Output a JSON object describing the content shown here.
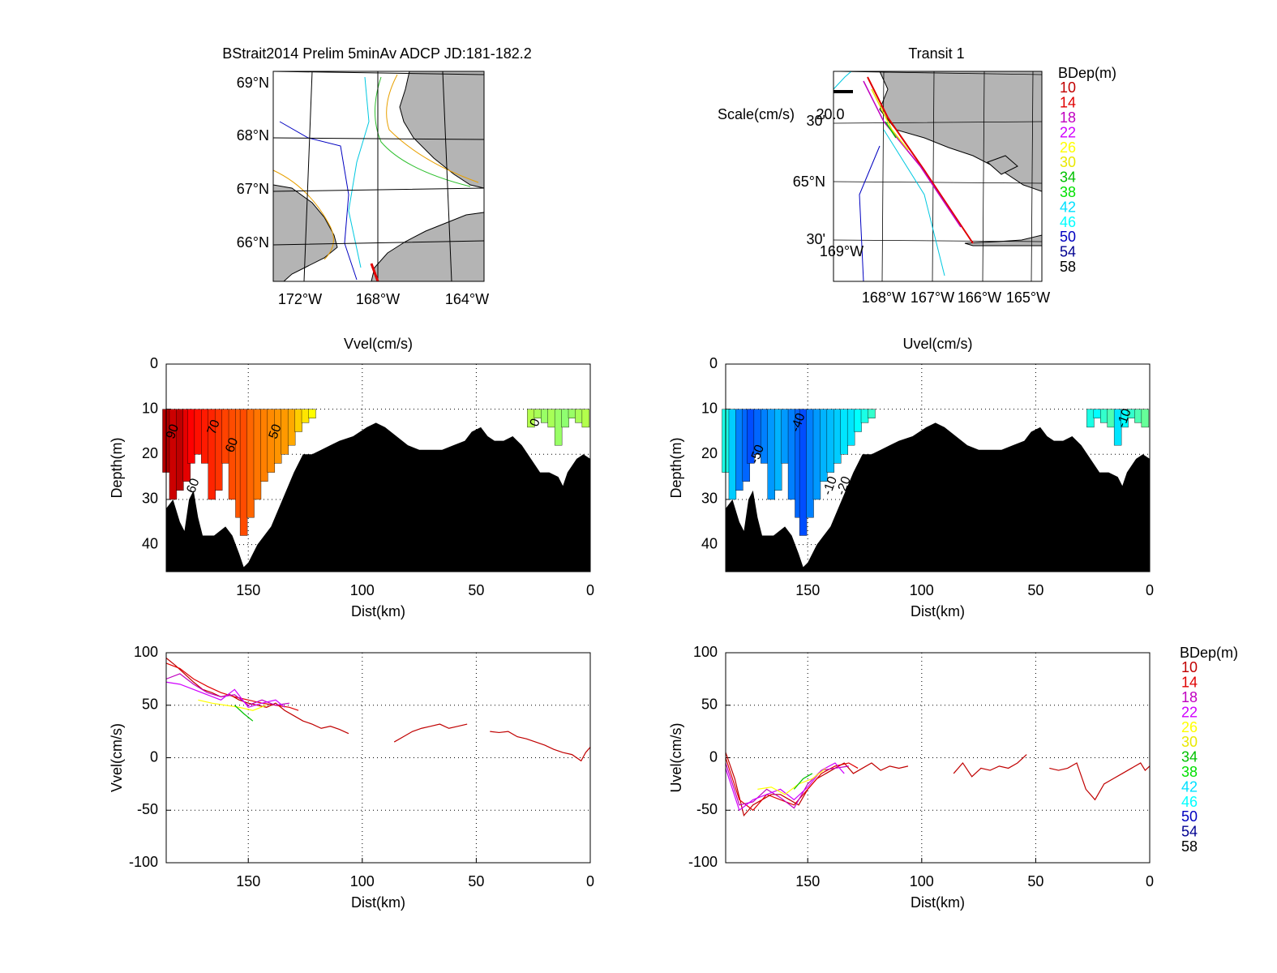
{
  "chart_data": [
    {
      "type": "map",
      "title": "BStrait2014 Prelim 5minAv ADCP JD:181-182.2",
      "lat_labels": [
        "69°N",
        "68°N",
        "67°N",
        "66°N"
      ],
      "lon_labels": [
        "172°W",
        "168°W",
        "164°W"
      ]
    },
    {
      "type": "map",
      "title": "Transit 1",
      "scale_label": "Scale(cm/s)",
      "scale_text": "20.0",
      "lat_labels": [
        "30'",
        "65°N",
        "30'"
      ],
      "lon_labels": [
        "169°W",
        "168°W",
        "167°W",
        "166°W",
        "165°W"
      ],
      "legend": {
        "title": "BDep(m)",
        "entries": [
          {
            "name": "10",
            "color": "#c00000"
          },
          {
            "name": "14",
            "color": "#e00000"
          },
          {
            "name": "18",
            "color": "#c000c0"
          },
          {
            "name": "22",
            "color": "#d000ff"
          },
          {
            "name": "26",
            "color": "#ffff00"
          },
          {
            "name": "30",
            "color": "#e8e800"
          },
          {
            "name": "34",
            "color": "#00c000"
          },
          {
            "name": "38",
            "color": "#00e000"
          },
          {
            "name": "42",
            "color": "#00e0ff"
          },
          {
            "name": "46",
            "color": "#00ffff"
          },
          {
            "name": "50",
            "color": "#0000c0"
          },
          {
            "name": "54",
            "color": "#000090"
          },
          {
            "name": "58",
            "color": "#000000"
          }
        ]
      }
    },
    {
      "type": "contour",
      "title": "Vvel(cm/s)",
      "xlabel": "Dist(km)",
      "ylabel": "Depth(m)",
      "xlim": [
        186,
        0
      ],
      "ylim": [
        46,
        0
      ],
      "xticks": [
        150,
        100,
        50,
        0
      ],
      "yticks": [
        0,
        10,
        20,
        30,
        40
      ],
      "grid": true,
      "clim": [
        -100,
        100
      ],
      "data_top": 10,
      "columns": {
        "x": [
          186,
          183,
          180,
          177,
          175,
          172,
          169,
          166,
          163,
          160,
          157,
          154,
          152,
          149,
          146,
          143,
          140,
          137,
          134,
          131,
          128,
          125,
          122,
          26,
          23,
          20,
          17,
          14,
          11,
          8,
          5,
          2
        ],
        "data_bottom": [
          24,
          30,
          28,
          26,
          22,
          20,
          22,
          30,
          28,
          22,
          30,
          34,
          38,
          34,
          30,
          26,
          24,
          22,
          20,
          18,
          15,
          13,
          12,
          14,
          12,
          13,
          14,
          18,
          14,
          12,
          13,
          14
        ],
        "values": [
          90,
          85,
          88,
          80,
          75,
          72,
          70,
          68,
          65,
          62,
          60,
          58,
          60,
          55,
          52,
          50,
          48,
          46,
          45,
          42,
          35,
          30,
          25,
          10,
          8,
          5,
          8,
          5,
          3,
          5,
          8,
          10
        ]
      },
      "contour_labels": [
        {
          "value": 90,
          "x": 183,
          "depth": 15
        },
        {
          "value": 70,
          "x": 165,
          "depth": 14
        },
        {
          "value": 60,
          "x": 157,
          "depth": 18
        },
        {
          "value": 50,
          "x": 138,
          "depth": 15
        },
        {
          "value": 60,
          "x": 174,
          "depth": 27
        },
        {
          "value": 0,
          "x": 24,
          "depth": 13
        }
      ],
      "bottom": {
        "x": [
          186,
          183,
          180,
          178,
          176,
          174,
          172,
          170,
          165,
          160,
          157,
          154,
          152,
          150,
          146,
          140,
          135,
          130,
          126,
          122,
          118,
          114,
          110,
          104,
          98,
          94,
          90,
          85,
          80,
          75,
          70,
          65,
          60,
          55,
          52,
          48,
          45,
          42,
          38,
          34,
          30,
          26,
          22,
          18,
          14,
          12,
          10,
          6,
          3,
          0
        ],
        "depth": [
          32,
          30,
          35,
          37,
          30,
          28,
          34,
          38,
          38,
          36,
          38,
          42,
          45,
          44,
          40,
          36,
          30,
          24,
          20,
          20,
          19,
          18,
          17,
          16,
          14,
          13,
          14,
          16,
          18,
          19,
          19,
          19,
          18,
          17,
          15,
          14,
          16,
          17,
          17,
          16,
          18,
          21,
          24,
          24,
          25,
          27,
          24,
          21,
          20,
          21
        ]
      }
    },
    {
      "type": "contour",
      "title": "Uvel(cm/s)",
      "xlabel": "Dist(km)",
      "ylabel": "Depth(m)",
      "xlim": [
        186,
        0
      ],
      "ylim": [
        46,
        0
      ],
      "xticks": [
        150,
        100,
        50,
        0
      ],
      "yticks": [
        0,
        10,
        20,
        30,
        40
      ],
      "grid": true,
      "clim": [
        -100,
        100
      ],
      "data_top": 10,
      "columns": {
        "x": [
          186,
          183,
          180,
          177,
          175,
          172,
          169,
          166,
          163,
          160,
          157,
          154,
          152,
          149,
          146,
          143,
          140,
          137,
          134,
          131,
          128,
          125,
          122,
          26,
          23,
          20,
          17,
          14,
          11,
          8,
          5,
          2
        ],
        "data_bottom": [
          24,
          30,
          28,
          26,
          22,
          20,
          22,
          30,
          28,
          22,
          30,
          34,
          38,
          34,
          30,
          26,
          24,
          22,
          20,
          18,
          15,
          13,
          12,
          14,
          12,
          13,
          14,
          18,
          14,
          12,
          13,
          14
        ],
        "values": [
          -20,
          -35,
          -50,
          -55,
          -60,
          -55,
          -50,
          -45,
          -40,
          -45,
          -50,
          -55,
          -60,
          -50,
          -45,
          -40,
          -38,
          -35,
          -30,
          -30,
          -25,
          -20,
          -15,
          -20,
          -25,
          -15,
          -10,
          -30,
          -25,
          -15,
          -10,
          -5
        ]
      },
      "contour_labels": [
        {
          "value": -40,
          "x": 154,
          "depth": 13
        },
        {
          "value": -50,
          "x": 172,
          "depth": 20
        },
        {
          "value": -10,
          "x": 140,
          "depth": 27
        },
        {
          "value": -20,
          "x": 134,
          "depth": 27
        },
        {
          "value": -10,
          "x": 11,
          "depth": 12
        }
      ],
      "bottom": {
        "x": [
          186,
          183,
          180,
          178,
          176,
          174,
          172,
          170,
          165,
          160,
          157,
          154,
          152,
          150,
          146,
          140,
          135,
          130,
          126,
          122,
          118,
          114,
          110,
          104,
          98,
          94,
          90,
          85,
          80,
          75,
          70,
          65,
          60,
          55,
          52,
          48,
          45,
          42,
          38,
          34,
          30,
          26,
          22,
          18,
          14,
          12,
          10,
          6,
          3,
          0
        ],
        "depth": [
          32,
          30,
          35,
          37,
          30,
          28,
          34,
          38,
          38,
          36,
          38,
          42,
          45,
          44,
          40,
          36,
          30,
          24,
          20,
          20,
          19,
          18,
          17,
          16,
          14,
          13,
          14,
          16,
          18,
          19,
          19,
          19,
          18,
          17,
          15,
          14,
          16,
          17,
          17,
          16,
          18,
          21,
          24,
          24,
          25,
          27,
          24,
          21,
          20,
          21
        ]
      }
    },
    {
      "type": "line",
      "xlabel": "Dist(km)",
      "ylabel": "Vvel(cm/s)",
      "xlim": [
        186,
        0
      ],
      "ylim": [
        -100,
        100
      ],
      "xticks": [
        150,
        100,
        50,
        0
      ],
      "yticks": [
        -100,
        -50,
        0,
        50,
        100
      ],
      "grid": true,
      "series": [
        {
          "color": "#c00000",
          "x": [
            186,
            182,
            178,
            174,
            170,
            166,
            162,
            158,
            154,
            150,
            146,
            142,
            138,
            134,
            130,
            126,
            122,
            118,
            114,
            110,
            106,
            96,
            86,
            82,
            78,
            74,
            70,
            66,
            62,
            58,
            54,
            49,
            44,
            40,
            36,
            32,
            28,
            24,
            20,
            16,
            12,
            8,
            4,
            2,
            0
          ],
          "values": [
            95,
            88,
            80,
            72,
            65,
            62,
            58,
            60,
            55,
            52,
            50,
            48,
            52,
            45,
            40,
            35,
            32,
            28,
            30,
            27,
            23,
            null,
            15,
            20,
            25,
            28,
            30,
            32,
            28,
            30,
            32,
            null,
            25,
            24,
            25,
            20,
            18,
            15,
            12,
            8,
            5,
            3,
            -3,
            5,
            10
          ]
        },
        {
          "color": "#e00000",
          "x": [
            186,
            180,
            174,
            168,
            162,
            156,
            150,
            144,
            138,
            132,
            128
          ],
          "values": [
            90,
            85,
            75,
            68,
            62,
            58,
            55,
            52,
            50,
            48,
            45
          ]
        },
        {
          "color": "#c000c0",
          "x": [
            186,
            180,
            174,
            168,
            162,
            156,
            150,
            144,
            138,
            132
          ],
          "values": [
            75,
            80,
            70,
            62,
            58,
            60,
            50,
            55,
            50,
            52
          ]
        },
        {
          "color": "#d000ff",
          "x": [
            186,
            180,
            174,
            168,
            162,
            156,
            150,
            144,
            138,
            134
          ],
          "values": [
            72,
            70,
            65,
            60,
            55,
            65,
            48,
            52,
            55,
            48
          ]
        },
        {
          "color": "#ffff00",
          "x": [
            172,
            166,
            160,
            154,
            148,
            142
          ],
          "values": [
            55,
            52,
            50,
            48,
            45,
            50
          ]
        },
        {
          "color": "#00c000",
          "x": [
            156,
            152,
            148
          ],
          "values": [
            50,
            42,
            35
          ]
        }
      ]
    },
    {
      "type": "line",
      "xlabel": "Dist(km)",
      "ylabel": "Uvel(cm/s)",
      "xlim": [
        186,
        0
      ],
      "ylim": [
        -100,
        100
      ],
      "xticks": [
        150,
        100,
        50,
        0
      ],
      "yticks": [
        -100,
        -50,
        0,
        50,
        100
      ],
      "grid": true,
      "series": [
        {
          "color": "#c00000",
          "x": [
            186,
            182,
            178,
            174,
            170,
            166,
            162,
            158,
            154,
            150,
            146,
            142,
            138,
            134,
            130,
            126,
            122,
            118,
            114,
            110,
            106,
            96,
            86,
            82,
            78,
            74,
            70,
            66,
            62,
            58,
            54,
            49,
            44,
            40,
            36,
            32,
            28,
            24,
            20,
            16,
            12,
            8,
            4,
            2,
            0
          ],
          "values": [
            5,
            -20,
            -55,
            -45,
            -40,
            -35,
            -35,
            -40,
            -45,
            -30,
            -20,
            -15,
            -10,
            -5,
            -15,
            -10,
            -5,
            -12,
            -8,
            -10,
            -8,
            null,
            -15,
            -5,
            -18,
            -10,
            -12,
            -8,
            -10,
            -5,
            3,
            null,
            -10,
            -12,
            -10,
            -5,
            -30,
            -40,
            -25,
            -20,
            -15,
            -10,
            -5,
            -12,
            -8
          ]
        },
        {
          "color": "#e00000",
          "x": [
            186,
            180,
            174,
            168,
            162,
            156,
            150,
            144,
            138,
            132,
            128
          ],
          "values": [
            0,
            -40,
            -50,
            -35,
            -40,
            -45,
            -30,
            -15,
            -8,
            -5,
            -10
          ]
        },
        {
          "color": "#c000c0",
          "x": [
            186,
            180,
            174,
            168,
            162,
            156,
            150,
            144,
            138,
            132
          ],
          "values": [
            -5,
            -45,
            -42,
            -30,
            -38,
            -48,
            -25,
            -12,
            -10,
            -8
          ]
        },
        {
          "color": "#d000ff",
          "x": [
            186,
            180,
            174,
            168,
            162,
            156,
            150,
            144,
            138,
            134
          ],
          "values": [
            -10,
            -50,
            -40,
            -35,
            -30,
            -40,
            -28,
            -12,
            -5,
            -15
          ]
        },
        {
          "color": "#ffff00",
          "x": [
            172,
            166,
            160,
            154,
            148,
            142
          ],
          "values": [
            -30,
            -28,
            -35,
            -25,
            -20,
            -10
          ]
        },
        {
          "color": "#00c000",
          "x": [
            156,
            152,
            148
          ],
          "values": [
            -30,
            -20,
            -15
          ]
        }
      ],
      "legend": {
        "title": "BDep(m)",
        "entries": [
          {
            "name": "10",
            "color": "#c00000"
          },
          {
            "name": "14",
            "color": "#e00000"
          },
          {
            "name": "18",
            "color": "#c000c0"
          },
          {
            "name": "22",
            "color": "#d000ff"
          },
          {
            "name": "26",
            "color": "#ffff00"
          },
          {
            "name": "30",
            "color": "#e8e800"
          },
          {
            "name": "34",
            "color": "#00c000"
          },
          {
            "name": "38",
            "color": "#00e000"
          },
          {
            "name": "42",
            "color": "#00e0ff"
          },
          {
            "name": "46",
            "color": "#00ffff"
          },
          {
            "name": "50",
            "color": "#0000c0"
          },
          {
            "name": "54",
            "color": "#000090"
          },
          {
            "name": "58",
            "color": "#000000"
          }
        ]
      }
    }
  ]
}
